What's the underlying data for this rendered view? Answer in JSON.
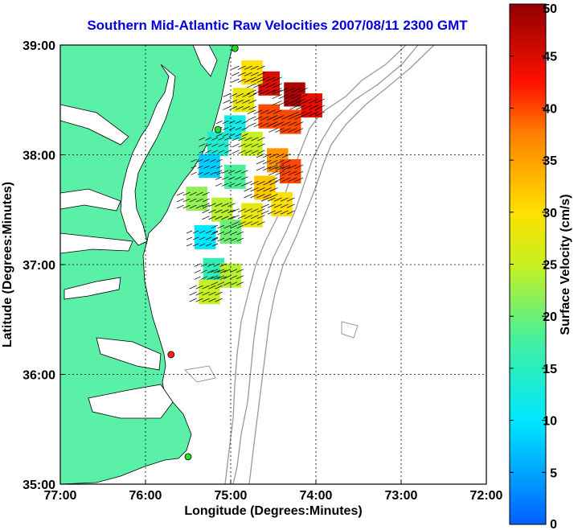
{
  "title": "Southern Mid-Atlantic Raw Velocities 2007/08/11 2300 GMT",
  "chart_data": {
    "type": "heatmap",
    "title": "Southern Mid-Atlantic Raw Velocities 2007/08/11 2300 GMT",
    "xlabel": "Longitude (Degrees:Minutes)",
    "ylabel": "Latitude (Degrees:Minutes)",
    "xlim": [
      -77,
      -72
    ],
    "ylim": [
      35,
      39
    ],
    "x_ticks": [
      {
        "value": -77,
        "label": "77:00"
      },
      {
        "value": -76,
        "label": "76:00"
      },
      {
        "value": -75,
        "label": "75:00"
      },
      {
        "value": -74,
        "label": "74:00"
      },
      {
        "value": -73,
        "label": "73:00"
      },
      {
        "value": -72,
        "label": "72:00"
      }
    ],
    "y_ticks": [
      {
        "value": 35,
        "label": "35:00"
      },
      {
        "value": 36,
        "label": "36:00"
      },
      {
        "value": 37,
        "label": "37:00"
      },
      {
        "value": 38,
        "label": "38:00"
      },
      {
        "value": 39,
        "label": "39:00"
      }
    ],
    "grid": true,
    "colorbar": {
      "label": "Surface Velocity (cm/s)",
      "min": 0,
      "max": 50,
      "ticks": [
        0,
        5,
        10,
        15,
        20,
        25,
        30,
        35,
        40,
        45,
        50
      ]
    },
    "land_color": "#5af0a8",
    "velocity_field": [
      {
        "lon": -74.55,
        "lat": 38.65,
        "speed": 45
      },
      {
        "lon": -74.25,
        "lat": 38.55,
        "speed": 48
      },
      {
        "lon": -74.05,
        "lat": 38.45,
        "speed": 44
      },
      {
        "lon": -74.75,
        "lat": 38.75,
        "speed": 30
      },
      {
        "lon": -74.85,
        "lat": 38.5,
        "speed": 28
      },
      {
        "lon": -74.55,
        "lat": 38.35,
        "speed": 40
      },
      {
        "lon": -74.3,
        "lat": 38.3,
        "speed": 40
      },
      {
        "lon": -74.95,
        "lat": 38.25,
        "speed": 12
      },
      {
        "lon": -75.15,
        "lat": 38.1,
        "speed": 14
      },
      {
        "lon": -74.75,
        "lat": 38.1,
        "speed": 25
      },
      {
        "lon": -74.45,
        "lat": 37.95,
        "speed": 36
      },
      {
        "lon": -74.3,
        "lat": 37.85,
        "speed": 40
      },
      {
        "lon": -75.25,
        "lat": 37.9,
        "speed": 8
      },
      {
        "lon": -74.95,
        "lat": 37.8,
        "speed": 18
      },
      {
        "lon": -74.6,
        "lat": 37.7,
        "speed": 32
      },
      {
        "lon": -74.4,
        "lat": 37.55,
        "speed": 30
      },
      {
        "lon": -75.4,
        "lat": 37.6,
        "speed": 22
      },
      {
        "lon": -75.1,
        "lat": 37.5,
        "speed": 24
      },
      {
        "lon": -74.75,
        "lat": 37.45,
        "speed": 28
      },
      {
        "lon": -75.3,
        "lat": 37.25,
        "speed": 10
      },
      {
        "lon": -75.0,
        "lat": 37.3,
        "speed": 20
      },
      {
        "lon": -75.2,
        "lat": 36.95,
        "speed": 16
      },
      {
        "lon": -75.0,
        "lat": 36.9,
        "speed": 24
      },
      {
        "lon": -75.25,
        "lat": 36.75,
        "speed": 25
      }
    ],
    "stations": [
      {
        "lon": -74.95,
        "lat": 38.97,
        "color": "#20e020"
      },
      {
        "lon": -75.15,
        "lat": 38.23,
        "color": "#20e020"
      },
      {
        "lon": -75.7,
        "lat": 36.18,
        "color": "#ff2020"
      },
      {
        "lon": -75.5,
        "lat": 35.25,
        "color": "#20e020"
      }
    ]
  }
}
